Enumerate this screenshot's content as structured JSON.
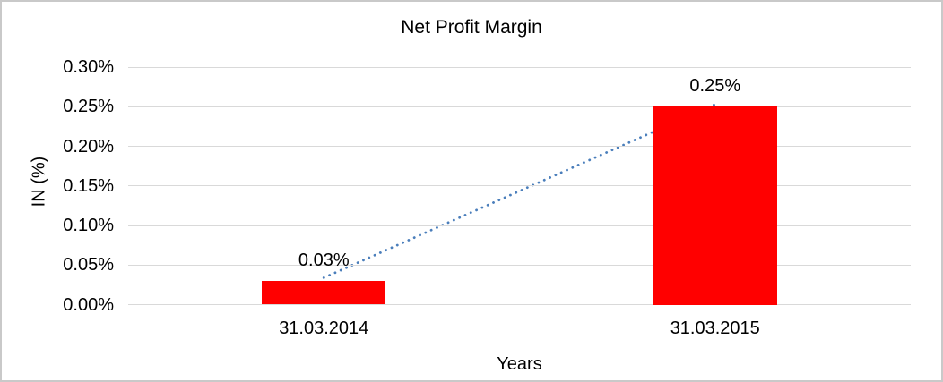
{
  "frame": {
    "background": "#ffffff",
    "border_color": "#c9c9c9"
  },
  "chart_data": {
    "type": "bar",
    "title": "Net Profit Margin",
    "xlabel": "Years",
    "ylabel": "IN (%)",
    "categories": [
      "31.03.2014",
      "31.03.2015"
    ],
    "values": [
      0.03,
      0.25
    ],
    "data_labels": [
      "0.03%",
      "0.25%"
    ],
    "ylim": [
      0,
      0.3
    ],
    "ytick_values": [
      0.0,
      0.05,
      0.1,
      0.15,
      0.2,
      0.25,
      0.3
    ],
    "ytick_labels": [
      "0.00%",
      "0.05%",
      "0.10%",
      "0.15%",
      "0.20%",
      "0.25%",
      "0.30%"
    ],
    "grid": true,
    "legend": "none",
    "bar_color": "#ff0000",
    "gridline_color": "#d9d9d9",
    "text_color": "#000000",
    "trendline": {
      "type": "linear",
      "style": "dotted",
      "color": "#4a7ebb",
      "from_value": 0.03,
      "to_value": 0.25
    }
  }
}
